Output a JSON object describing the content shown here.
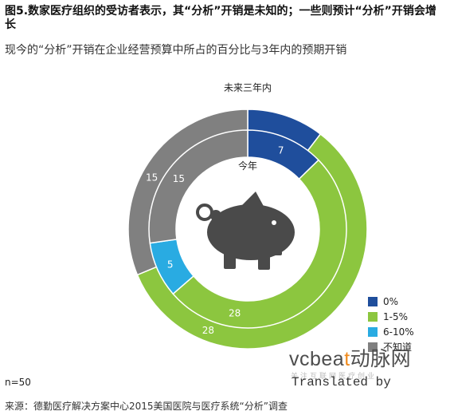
{
  "title": "图5.数家医疗组织的受访者表示，其“分析”开销是未知的；一些则预计“分析”开销会增长",
  "subtitle": "现今的“分析”开销在企业经营预算中所占的百分比与3年内的预期开销",
  "chart_data": {
    "type": "donut",
    "rings": [
      {
        "name": "未来三年内",
        "ring": "outer",
        "slices": [
          {
            "category": "0%",
            "value": 5,
            "label": "",
            "color": "#1f4e9c"
          },
          {
            "category": "1-5%",
            "value": 28,
            "label": "28",
            "color": "#8cc63f"
          },
          {
            "category": "6-10%",
            "value": 0,
            "label": "",
            "color": "#29abe2"
          },
          {
            "category": "不知道",
            "value": 15,
            "label": "15",
            "color": "#808080"
          }
        ]
      },
      {
        "name": "今年",
        "ring": "inner",
        "slices": [
          {
            "category": "0%",
            "value": 7,
            "label": "7",
            "color": "#1f4e9c"
          },
          {
            "category": "1-5%",
            "value": 28,
            "label": "28",
            "color": "#8cc63f"
          },
          {
            "category": "6-10%",
            "value": 5,
            "label": "5",
            "color": "#29abe2"
          },
          {
            "category": "不知道",
            "value": 15,
            "label": "15",
            "color": "#808080"
          }
        ]
      }
    ],
    "legend": [
      {
        "label": "0%",
        "color": "#1f4e9c"
      },
      {
        "label": "1-5%",
        "color": "#8cc63f"
      },
      {
        "label": "6-10%",
        "color": "#29abe2"
      },
      {
        "label": "不知道",
        "color": "#808080"
      }
    ],
    "legend_position": "bottom-right",
    "center_icon": "piggy-bank-icon"
  },
  "sample_size": "n=50",
  "source": "来源：德勤医疗解决方案中心2015美国医院与医疗系统“分析”调查",
  "watermark": {
    "logo_main": "vcbea",
    "logo_dot": "t",
    "logo_tail": "动脉网",
    "tagline": "关注互联网医疗创业",
    "translated": "Translated by"
  }
}
